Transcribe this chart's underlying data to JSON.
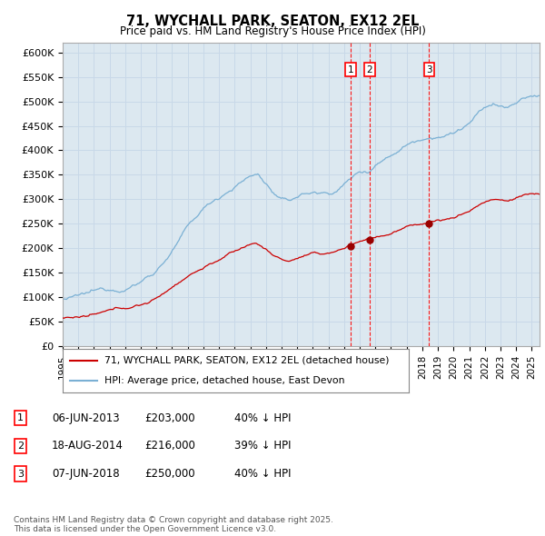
{
  "title": "71, WYCHALL PARK, SEATON, EX12 2EL",
  "subtitle": "Price paid vs. HM Land Registry's House Price Index (HPI)",
  "ylim": [
    0,
    620000
  ],
  "yticks": [
    0,
    50000,
    100000,
    150000,
    200000,
    250000,
    300000,
    350000,
    400000,
    450000,
    500000,
    550000,
    600000
  ],
  "ytick_labels": [
    "£0",
    "£50K",
    "£100K",
    "£150K",
    "£200K",
    "£250K",
    "£300K",
    "£350K",
    "£400K",
    "£450K",
    "£500K",
    "£550K",
    "£600K"
  ],
  "xlim_start": 1995.0,
  "xlim_end": 2025.5,
  "transactions": [
    {
      "num": 1,
      "date": "06-JUN-2013",
      "x": 2013.44,
      "price": 203000,
      "price_str": "£203,000",
      "pct": "40%",
      "dir": "↓"
    },
    {
      "num": 2,
      "date": "18-AUG-2014",
      "x": 2014.63,
      "price": 216000,
      "price_str": "£216,000",
      "pct": "39%",
      "dir": "↓"
    },
    {
      "num": 3,
      "date": "07-JUN-2018",
      "x": 2018.44,
      "price": 250000,
      "price_str": "£250,000",
      "pct": "40%",
      "dir": "↓"
    }
  ],
  "legend_line1": "71, WYCHALL PARK, SEATON, EX12 2EL (detached house)",
  "legend_line2": "HPI: Average price, detached house, East Devon",
  "footer": "Contains HM Land Registry data © Crown copyright and database right 2025.\nThis data is licensed under the Open Government Licence v3.0.",
  "line_color_red": "#cc0000",
  "line_color_blue": "#7ab0d4",
  "dot_color_red": "#990000",
  "grid_color": "#c8d8e8",
  "bg_color": "#ffffff",
  "plot_bg_color": "#dce8f0"
}
